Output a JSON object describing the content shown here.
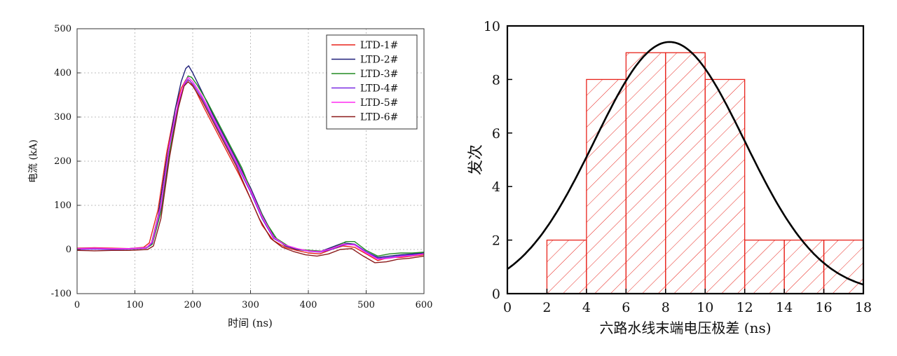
{
  "chart_data": [
    {
      "type": "line",
      "xlabel": "时间 (ns)",
      "ylabel": "电流 (kA)",
      "xlim": [
        0,
        600
      ],
      "ylim": [
        -100,
        500
      ],
      "xticks": [
        0,
        100,
        200,
        300,
        400,
        500,
        600
      ],
      "yticks": [
        -100,
        0,
        100,
        200,
        300,
        400,
        500
      ],
      "grid": true,
      "legend_position": "top-right",
      "series": [
        {
          "name": "LTD-1#",
          "color": "#e8241c",
          "x": [
            0,
            30,
            60,
            90,
            115,
            125,
            140,
            155,
            170,
            180,
            188,
            195,
            205,
            220,
            240,
            260,
            280,
            300,
            320,
            340,
            360,
            380,
            400,
            420,
            440,
            460,
            480,
            500,
            520,
            540,
            560,
            580,
            600
          ],
          "y": [
            3,
            4,
            3,
            2,
            5,
            15,
            90,
            220,
            320,
            365,
            384,
            382,
            360,
            320,
            270,
            220,
            170,
            115,
            55,
            20,
            5,
            -2,
            -8,
            -10,
            0,
            8,
            5,
            -10,
            -25,
            -18,
            -18,
            -15,
            -12
          ]
        },
        {
          "name": "LTD-2#",
          "color": "#20207a",
          "x": [
            0,
            30,
            60,
            90,
            118,
            128,
            140,
            155,
            170,
            180,
            188,
            193,
            200,
            215,
            235,
            255,
            275,
            300,
            320,
            340,
            360,
            380,
            400,
            420,
            440,
            460,
            480,
            500,
            520,
            540,
            560,
            580,
            600
          ],
          "y": [
            2,
            3,
            1,
            2,
            4,
            10,
            75,
            205,
            320,
            380,
            410,
            416,
            400,
            360,
            305,
            255,
            205,
            140,
            80,
            30,
            8,
            0,
            -3,
            -5,
            5,
            15,
            12,
            -5,
            -18,
            -15,
            -12,
            -10,
            -8
          ]
        },
        {
          "name": "LTD-3#",
          "color": "#228b22",
          "x": [
            0,
            30,
            60,
            90,
            120,
            130,
            145,
            160,
            175,
            185,
            192,
            198,
            208,
            225,
            245,
            265,
            285,
            305,
            325,
            345,
            365,
            385,
            405,
            425,
            445,
            465,
            480,
            500,
            520,
            540,
            560,
            580,
            600
          ],
          "y": [
            2,
            2,
            1,
            1,
            3,
            12,
            85,
            220,
            325,
            375,
            393,
            390,
            372,
            335,
            285,
            235,
            185,
            120,
            65,
            25,
            8,
            0,
            -2,
            -4,
            5,
            18,
            18,
            -2,
            -15,
            -10,
            -8,
            -8,
            -6
          ]
        },
        {
          "name": "LTD-4#",
          "color": "#7a2be2",
          "x": [
            0,
            30,
            60,
            90,
            120,
            130,
            145,
            160,
            175,
            185,
            192,
            200,
            215,
            235,
            255,
            275,
            300,
            320,
            340,
            360,
            380,
            400,
            420,
            440,
            460,
            480,
            500,
            520,
            540,
            560,
            580,
            600
          ],
          "y": [
            0,
            1,
            0,
            1,
            3,
            15,
            95,
            235,
            330,
            372,
            385,
            375,
            345,
            295,
            245,
            195,
            130,
            70,
            25,
            10,
            2,
            -4,
            -6,
            0,
            10,
            12,
            -5,
            -20,
            -18,
            -14,
            -12,
            -10
          ]
        },
        {
          "name": "LTD-5#",
          "color": "#ff2cf0",
          "x": [
            0,
            30,
            60,
            90,
            120,
            130,
            145,
            160,
            175,
            185,
            192,
            200,
            215,
            235,
            255,
            275,
            300,
            320,
            340,
            360,
            380,
            400,
            420,
            440,
            460,
            480,
            500,
            520,
            540,
            560,
            580,
            600
          ],
          "y": [
            2,
            3,
            2,
            2,
            4,
            18,
            100,
            240,
            335,
            375,
            390,
            380,
            350,
            300,
            250,
            200,
            135,
            75,
            28,
            10,
            2,
            -3,
            -5,
            2,
            12,
            10,
            -8,
            -22,
            -20,
            -16,
            -14,
            -10
          ]
        },
        {
          "name": "LTD-6#",
          "color": "#8b1a1a",
          "x": [
            0,
            30,
            60,
            90,
            122,
            132,
            145,
            160,
            175,
            185,
            192,
            200,
            215,
            235,
            255,
            275,
            295,
            315,
            335,
            355,
            375,
            395,
            415,
            435,
            455,
            475,
            495,
            515,
            535,
            555,
            575,
            600
          ],
          "y": [
            -2,
            -3,
            -2,
            -2,
            0,
            8,
            70,
            210,
            320,
            370,
            380,
            370,
            340,
            290,
            240,
            190,
            130,
            70,
            25,
            5,
            -5,
            -12,
            -15,
            -10,
            0,
            2,
            -15,
            -30,
            -28,
            -22,
            -20,
            -15
          ]
        }
      ]
    },
    {
      "type": "bar",
      "xlabel": "六路水线末端电压极差 (ns)",
      "ylabel": "发次",
      "xlim": [
        0,
        18
      ],
      "ylim": [
        0,
        10
      ],
      "xticks": [
        0,
        2,
        4,
        6,
        8,
        10,
        12,
        14,
        16,
        18
      ],
      "yticks": [
        0,
        2,
        4,
        6,
        8,
        10
      ],
      "bins": [
        {
          "x0": 2,
          "x1": 4,
          "count": 2
        },
        {
          "x0": 4,
          "x1": 6,
          "count": 8
        },
        {
          "x0": 6,
          "x1": 8,
          "count": 9
        },
        {
          "x0": 8,
          "x1": 10,
          "count": 9
        },
        {
          "x0": 10,
          "x1": 12,
          "count": 8
        },
        {
          "x0": 12,
          "x1": 14,
          "count": 2
        },
        {
          "x0": 14,
          "x1": 16,
          "count": 2
        },
        {
          "x0": 16,
          "x1": 18,
          "count": 2
        }
      ],
      "bar_color": "#e8241c",
      "fit_curve": {
        "type": "gaussian",
        "peak": 9.4,
        "mean": 8.2,
        "sigma": 3.8,
        "color": "#000000"
      }
    }
  ]
}
